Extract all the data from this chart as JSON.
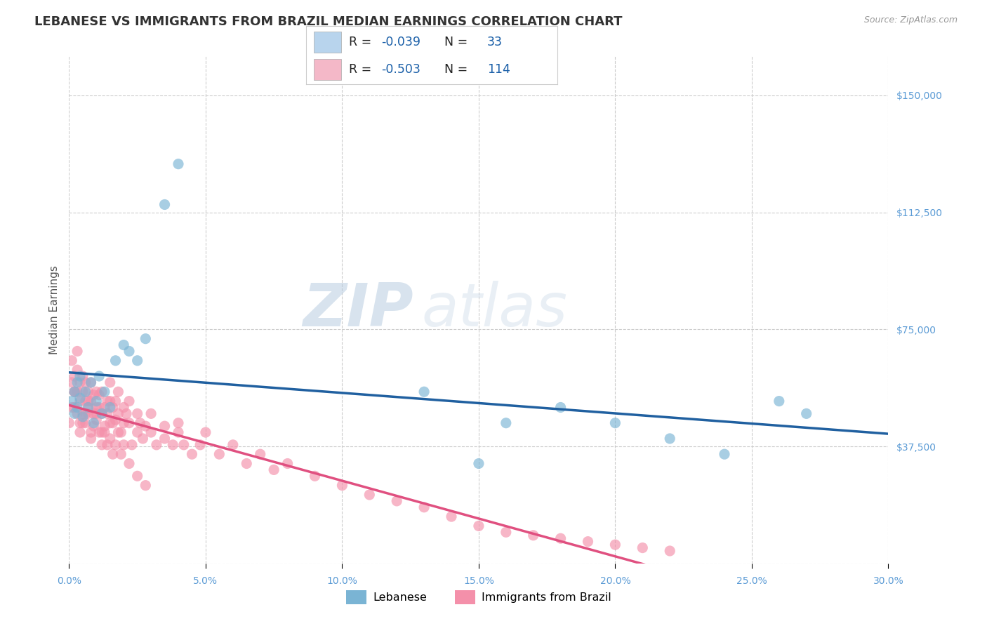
{
  "title": "LEBANESE VS IMMIGRANTS FROM BRAZIL MEDIAN EARNINGS CORRELATION CHART",
  "source_text": "Source: ZipAtlas.com",
  "ylabel": "Median Earnings",
  "xlim": [
    0.0,
    0.3
  ],
  "ylim": [
    0,
    162500
  ],
  "yticks": [
    0,
    37500,
    75000,
    112500,
    150000
  ],
  "xticks": [
    0.0,
    0.05,
    0.1,
    0.15,
    0.2,
    0.25,
    0.3
  ],
  "xtick_labels": [
    "0.0%",
    "5.0%",
    "10.0%",
    "15.0%",
    "20.0%",
    "25.0%",
    "30.0%"
  ],
  "ytick_labels_right": [
    "",
    "$37,500",
    "$75,000",
    "$112,500",
    "$150,000"
  ],
  "watermark_zip": "ZIP",
  "watermark_atlas": "atlas",
  "axis_color": "#5b9bd5",
  "lebanese_color": "#7ab4d4",
  "brazil_color": "#f490aa",
  "trend_lebanese_color": "#2060a0",
  "trend_brazil_color": "#e05080",
  "legend_box_color_1": "#b8d4ed",
  "legend_box_color_2": "#f4b8c8",
  "legend_label_1_R": "R = ",
  "legend_label_1_Rval": "-0.039",
  "legend_label_1_N": "  N = ",
  "legend_label_1_Nval": " 33",
  "legend_label_2_R": "R = ",
  "legend_label_2_Rval": "-0.503",
  "legend_label_2_N": "  N = ",
  "legend_label_2_Nval": "114",
  "title_fontsize": 13,
  "tick_fontsize": 10,
  "ylabel_fontsize": 11,
  "lebanese_x": [
    0.001,
    0.002,
    0.002,
    0.003,
    0.003,
    0.004,
    0.004,
    0.005,
    0.006,
    0.007,
    0.008,
    0.009,
    0.01,
    0.011,
    0.012,
    0.013,
    0.015,
    0.017,
    0.02,
    0.022,
    0.025,
    0.028,
    0.035,
    0.04,
    0.13,
    0.15,
    0.16,
    0.18,
    0.2,
    0.22,
    0.24,
    0.26,
    0.27
  ],
  "lebanese_y": [
    52000,
    48000,
    55000,
    50000,
    58000,
    53000,
    60000,
    47000,
    55000,
    50000,
    58000,
    45000,
    52000,
    60000,
    48000,
    55000,
    50000,
    65000,
    70000,
    68000,
    65000,
    72000,
    115000,
    128000,
    55000,
    32000,
    45000,
    50000,
    45000,
    40000,
    35000,
    52000,
    48000
  ],
  "brazil_x": [
    0.001,
    0.001,
    0.002,
    0.002,
    0.002,
    0.003,
    0.003,
    0.003,
    0.004,
    0.004,
    0.004,
    0.005,
    0.005,
    0.005,
    0.006,
    0.006,
    0.006,
    0.007,
    0.007,
    0.007,
    0.008,
    0.008,
    0.008,
    0.009,
    0.009,
    0.01,
    0.01,
    0.01,
    0.011,
    0.011,
    0.012,
    0.012,
    0.012,
    0.013,
    0.013,
    0.014,
    0.014,
    0.015,
    0.015,
    0.015,
    0.016,
    0.016,
    0.017,
    0.017,
    0.018,
    0.018,
    0.019,
    0.02,
    0.02,
    0.021,
    0.022,
    0.022,
    0.023,
    0.025,
    0.025,
    0.026,
    0.027,
    0.028,
    0.03,
    0.03,
    0.032,
    0.035,
    0.035,
    0.038,
    0.04,
    0.04,
    0.042,
    0.045,
    0.048,
    0.05,
    0.055,
    0.06,
    0.065,
    0.07,
    0.075,
    0.08,
    0.09,
    0.1,
    0.11,
    0.12,
    0.13,
    0.14,
    0.15,
    0.16,
    0.17,
    0.18,
    0.19,
    0.2,
    0.21,
    0.22,
    0.0,
    0.001,
    0.002,
    0.003,
    0.004,
    0.005,
    0.006,
    0.007,
    0.008,
    0.009,
    0.01,
    0.011,
    0.012,
    0.013,
    0.014,
    0.015,
    0.016,
    0.017,
    0.018,
    0.019,
    0.02,
    0.022,
    0.025,
    0.028
  ],
  "brazil_y": [
    58000,
    65000,
    60000,
    55000,
    50000,
    55000,
    62000,
    68000,
    52000,
    58000,
    45000,
    55000,
    60000,
    48000,
    52000,
    58000,
    45000,
    50000,
    55000,
    48000,
    52000,
    58000,
    42000,
    48000,
    54000,
    55000,
    50000,
    46000,
    50000,
    54000,
    48000,
    55000,
    42000,
    50000,
    44000,
    48000,
    52000,
    45000,
    52000,
    58000,
    45000,
    50000,
    46000,
    52000,
    48000,
    55000,
    42000,
    50000,
    45000,
    48000,
    45000,
    52000,
    38000,
    42000,
    48000,
    45000,
    40000,
    44000,
    42000,
    48000,
    38000,
    40000,
    44000,
    38000,
    42000,
    45000,
    38000,
    35000,
    38000,
    42000,
    35000,
    38000,
    32000,
    35000,
    30000,
    32000,
    28000,
    25000,
    22000,
    20000,
    18000,
    15000,
    12000,
    10000,
    9000,
    8000,
    7000,
    6000,
    5000,
    4000,
    45000,
    50000,
    55000,
    48000,
    42000,
    45000,
    48000,
    52000,
    40000,
    44000,
    48000,
    42000,
    38000,
    42000,
    38000,
    40000,
    35000,
    38000,
    42000,
    35000,
    38000,
    32000,
    28000,
    25000
  ]
}
